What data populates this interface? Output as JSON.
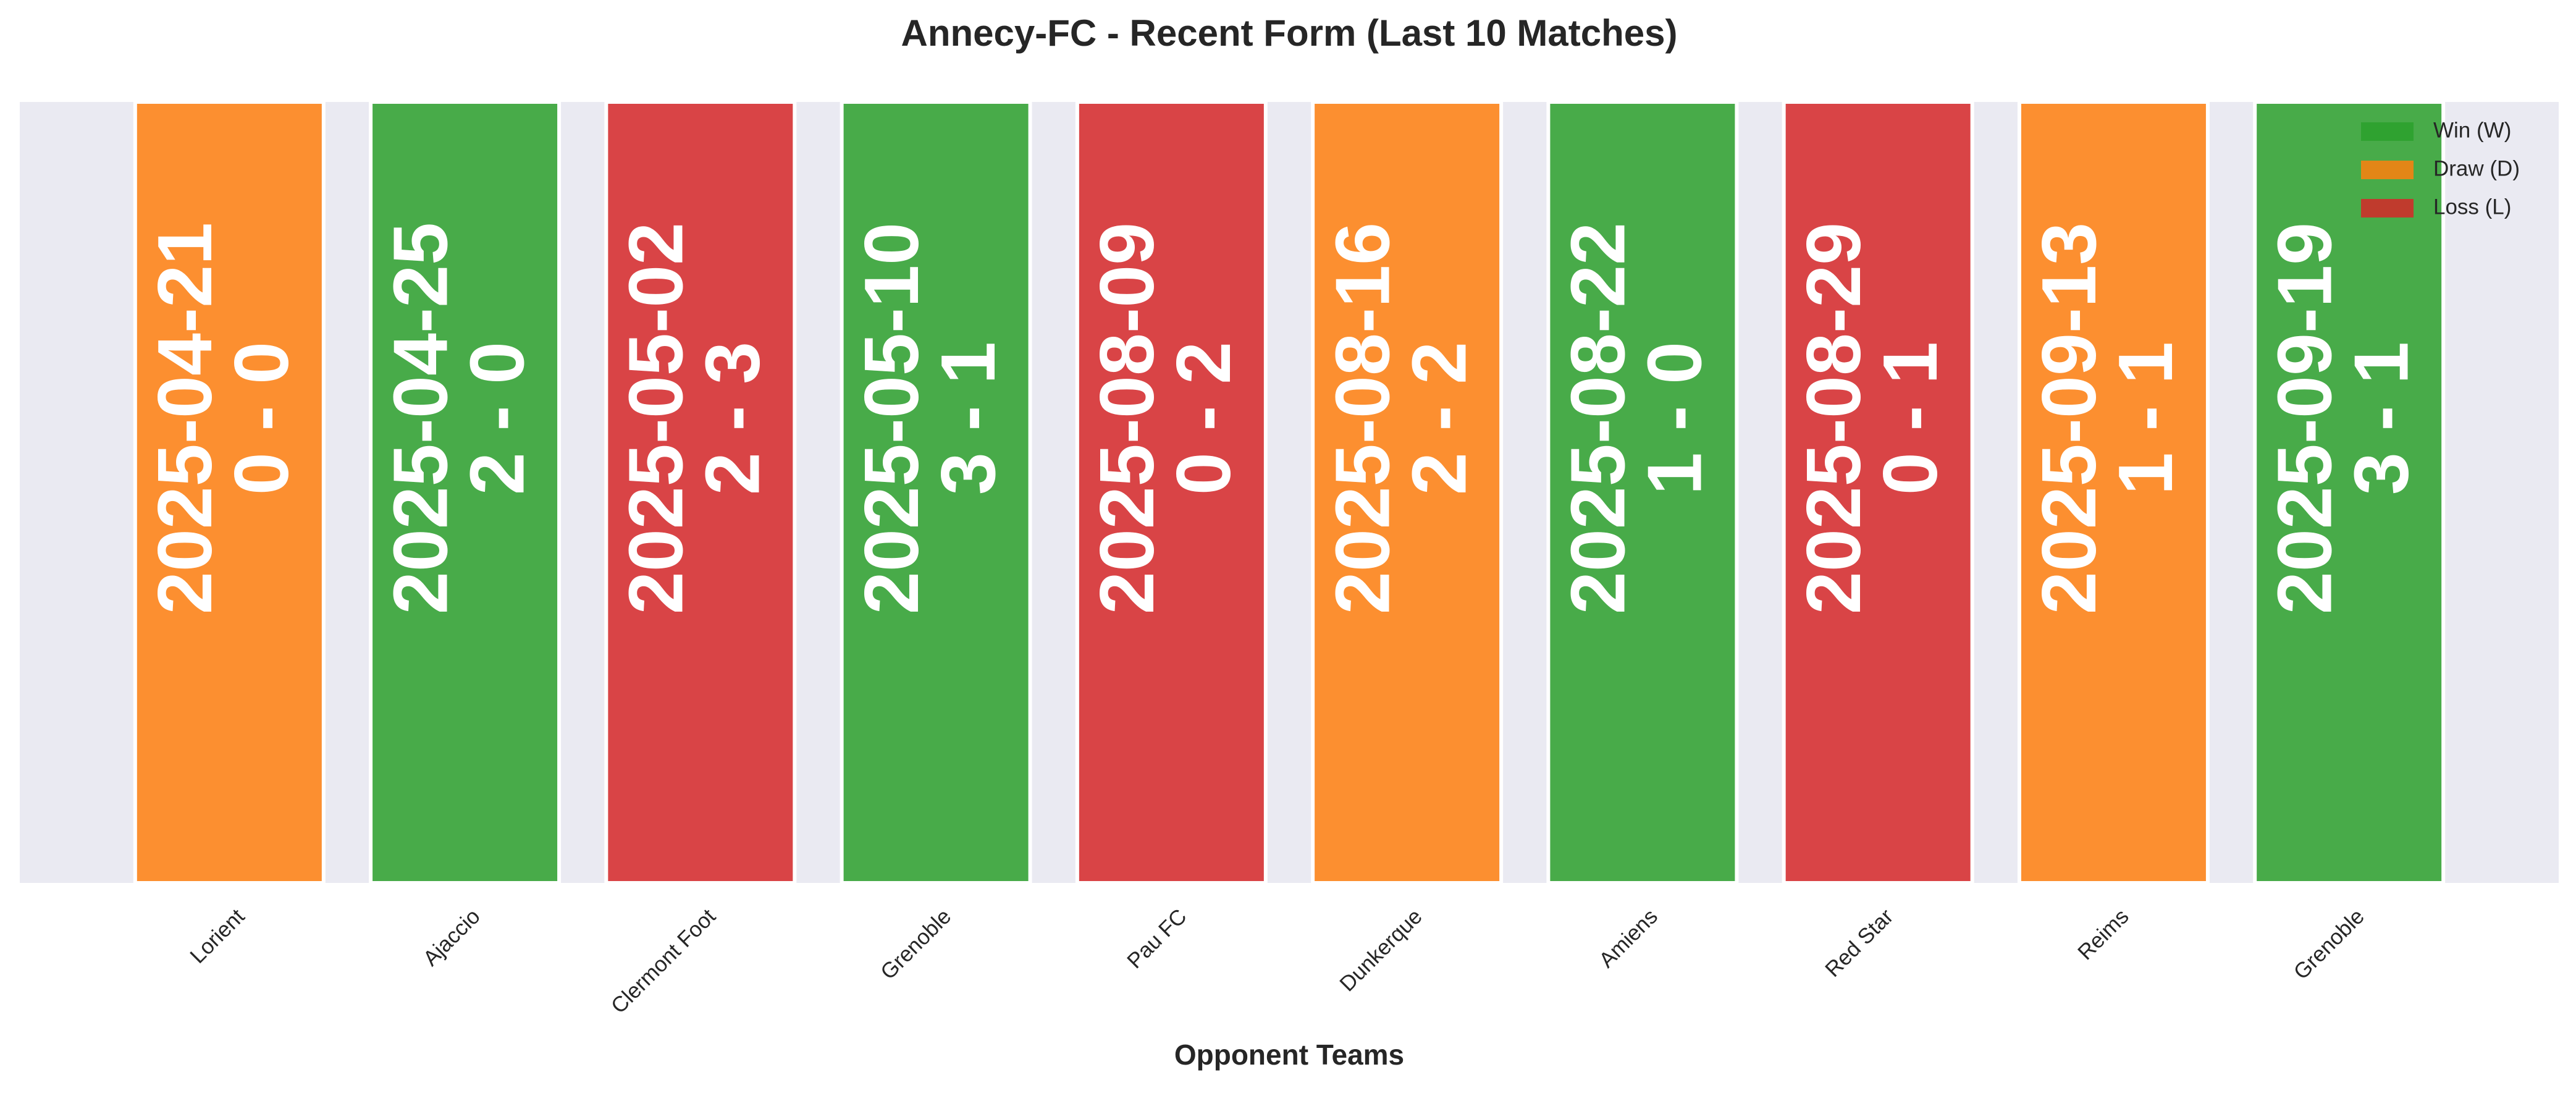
{
  "chart_data": {
    "type": "bar",
    "title": "Annecy-FC - Recent Form (Last 10 Matches)",
    "xlabel": "Opponent Teams",
    "categories": [
      "Lorient",
      "Ajaccio",
      "Clermont Foot",
      "Grenoble",
      "Pau FC",
      "Dunkerque",
      "Amiens",
      "Red Star",
      "Reims",
      "Grenoble"
    ],
    "values": [
      1,
      1,
      1,
      1,
      1,
      1,
      1,
      1,
      1,
      1
    ],
    "dates": [
      "2025-04-21",
      "2025-04-25",
      "2025-05-02",
      "2025-05-10",
      "2025-08-09",
      "2025-08-16",
      "2025-08-22",
      "2025-08-29",
      "2025-09-13",
      "2025-09-19"
    ],
    "scores": [
      "0 - 0",
      "2 - 0",
      "2 - 3",
      "3 - 1",
      "0 - 2",
      "2 - 2",
      "1 - 0",
      "0 - 1",
      "1 - 1",
      "3 - 1"
    ],
    "colors": [
      "#ff7f0e",
      "#2ca02c",
      "#d62728",
      "#2ca02c",
      "#d62728",
      "#ff7f0e",
      "#2ca02c",
      "#d62728",
      "#ff7f0e",
      "#2ca02c"
    ],
    "ylim": [
      0,
      1
    ],
    "legend": [
      {
        "name": "Win (W)",
        "color": "#2ca02c"
      },
      {
        "name": "Draw (D)",
        "color": "#ff7f0e"
      },
      {
        "name": "Loss (L)",
        "color": "#d62728"
      }
    ],
    "legend_position": "upper right"
  }
}
